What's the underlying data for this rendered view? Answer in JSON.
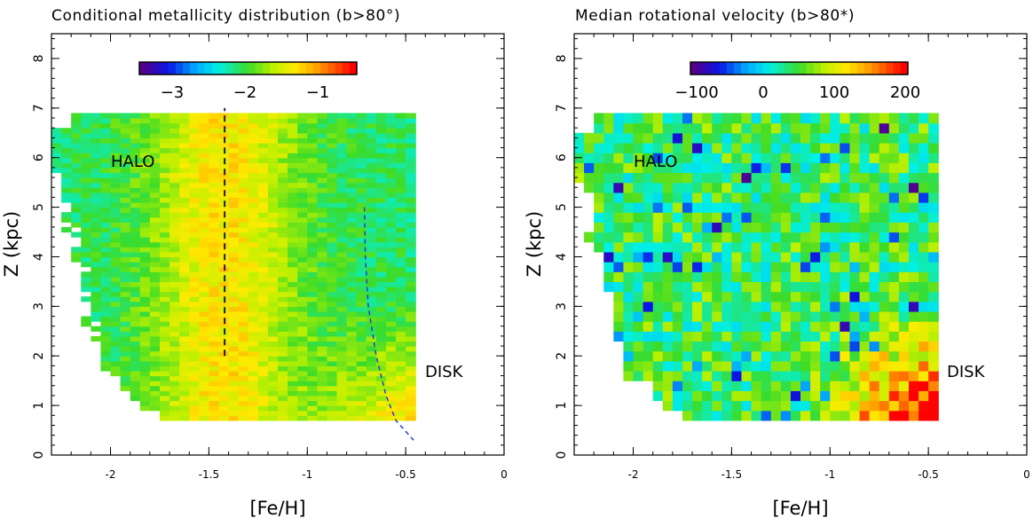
{
  "chart_data": [
    {
      "type": "heatmap",
      "title": "Conditional metallicity distribution (b>80°)",
      "xlabel": "[Fe/H]",
      "ylabel": "Z (kpc)",
      "xlim": [
        -2.3,
        0.0
      ],
      "ylim": [
        0,
        8.5
      ],
      "x_ticks": [
        "-2",
        "-1.5",
        "-1",
        "-0.5",
        "0"
      ],
      "y_ticks": [
        "0",
        "1",
        "2",
        "3",
        "4",
        "5",
        "6",
        "7",
        "8"
      ],
      "colorbar": {
        "range": [
          -3.8,
          -0.4
        ],
        "ticks": [
          "−3",
          "−2",
          "−1"
        ],
        "colormap": "rainbow"
      },
      "bins": {
        "feh_min": -2.3,
        "feh_max": -0.45,
        "z_min": 0.7,
        "z_max": 6.9,
        "dfeh": 0.05,
        "dz": 0.1
      },
      "region_labels": [
        {
          "text": "HALO",
          "x": -2.0,
          "y": 5.8
        },
        {
          "text": "DISK",
          "x": -0.4,
          "y": 1.7
        }
      ],
      "annotation_lines": [
        {
          "kind": "vertical",
          "x": -1.42,
          "y_range": [
            2.0,
            7.0
          ],
          "color": "#1a1a5a"
        },
        {
          "kind": "curve",
          "points": [
            [
              -0.71,
              5.0
            ],
            [
              -0.705,
              4.0
            ],
            [
              -0.69,
              3.0
            ],
            [
              -0.65,
              2.0
            ],
            [
              -0.6,
              1.2
            ],
            [
              -0.55,
              0.7
            ],
            [
              -0.46,
              0.3
            ]
          ],
          "color": "#1f3fd6"
        }
      ]
    },
    {
      "type": "heatmap",
      "title": "Median rotational velocity (b>80*)",
      "xlabel": "[Fe/H]",
      "ylabel": "Z (kpc)",
      "xlim": [
        -2.3,
        0.0
      ],
      "ylim": [
        0,
        8.5
      ],
      "x_ticks": [
        "-2",
        "-1.5",
        "-1",
        "-0.5",
        "0"
      ],
      "y_ticks": [
        "0",
        "1",
        "2",
        "3",
        "4",
        "5",
        "6",
        "7",
        "8"
      ],
      "colorbar": {
        "range": [
          -150,
          220
        ],
        "ticks": [
          "−100",
          "0",
          "100",
          "200"
        ],
        "colormap": "rainbow"
      },
      "bins": {
        "feh_min": -2.3,
        "feh_max": -0.45,
        "z_min": 0.7,
        "z_max": 6.9,
        "dfeh": 0.05,
        "dz": 0.2
      },
      "region_labels": [
        {
          "text": "HALO",
          "x": -2.0,
          "y": 5.8
        },
        {
          "text": "DISK",
          "x": -0.4,
          "y": 1.7
        }
      ]
    }
  ]
}
